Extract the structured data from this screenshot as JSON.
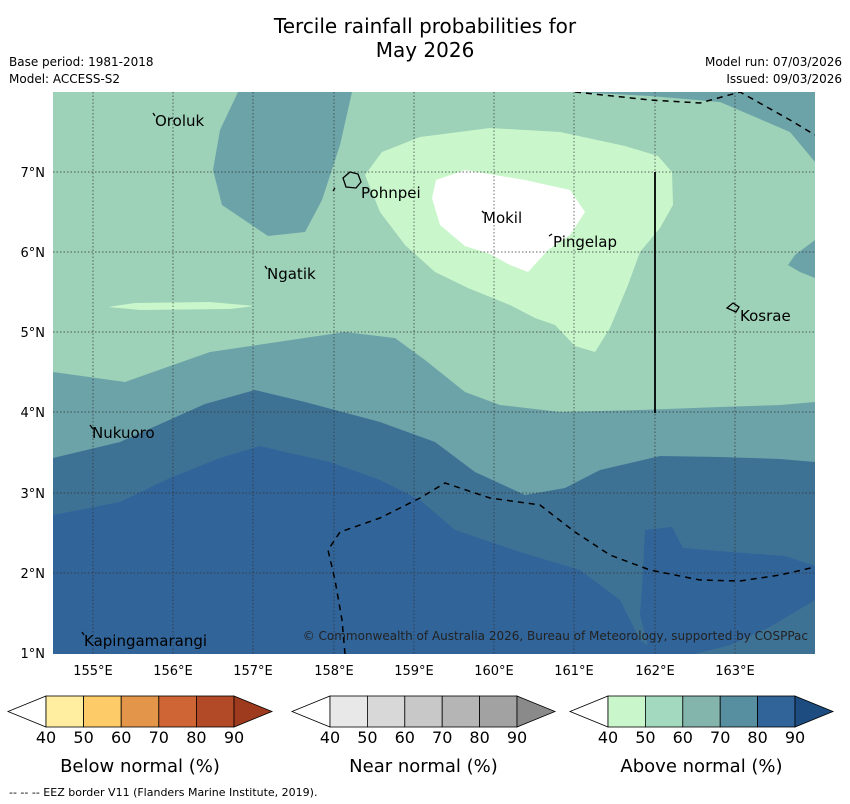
{
  "title_line1": "Tercile rainfall probabilities for",
  "title_line2": "May 2026",
  "meta_left": [
    "Base period: 1981-2018",
    "Model: ACCESS-S2"
  ],
  "meta_right": [
    "Model run: 07/03/2026",
    "Issued: 09/03/2026"
  ],
  "map": {
    "lon_labels": [
      "155°E",
      "156°E",
      "157°E",
      "158°E",
      "159°E",
      "160°E",
      "161°E",
      "162°E",
      "163°E"
    ],
    "lat_labels": [
      "7°N",
      "6°N",
      "5°N",
      "4°N",
      "3°N",
      "2°N",
      "1°N"
    ],
    "places": [
      "Oroluk",
      "Pohnpei",
      "Mokil",
      "Pingelap",
      "Ngatik",
      "Kosrae",
      "Nukuoro",
      "Kapingamarangi"
    ],
    "copyright": "© Commonwealth of Australia 2026, Bureau of Meteorology, supported by COSPPac",
    "colors": {
      "above_50": "#c9f7cb",
      "above_60": "#9dd1b8",
      "above_70": "#6ca3a8",
      "above_80": "#3e7295",
      "above_90": "#316499"
    }
  },
  "legends": [
    {
      "title": "Below normal (%)",
      "ticks": [
        "40",
        "50",
        "60",
        "70",
        "80",
        "90"
      ],
      "colors": [
        "#ffffff",
        "#ffeea0",
        "#fdcb68",
        "#e39649",
        "#cf6535",
        "#b24a27",
        "#9e3a1e"
      ]
    },
    {
      "title": "Near normal (%)",
      "ticks": [
        "40",
        "50",
        "60",
        "70",
        "80",
        "90"
      ],
      "colors": [
        "#ffffff",
        "#e8e8e8",
        "#d8d8d8",
        "#c8c8c8",
        "#b5b5b5",
        "#a2a2a2",
        "#8a8a8a"
      ]
    },
    {
      "title": "Above normal (%)",
      "ticks": [
        "40",
        "50",
        "60",
        "70",
        "80",
        "90"
      ],
      "colors": [
        "#ffffff",
        "#c9f7cb",
        "#a3d9bf",
        "#84b5ad",
        "#578fa1",
        "#316499",
        "#1d4d80"
      ]
    }
  ],
  "footer": "--  --  -- EEZ border V11 (Flanders Marine Institute, 2019)."
}
